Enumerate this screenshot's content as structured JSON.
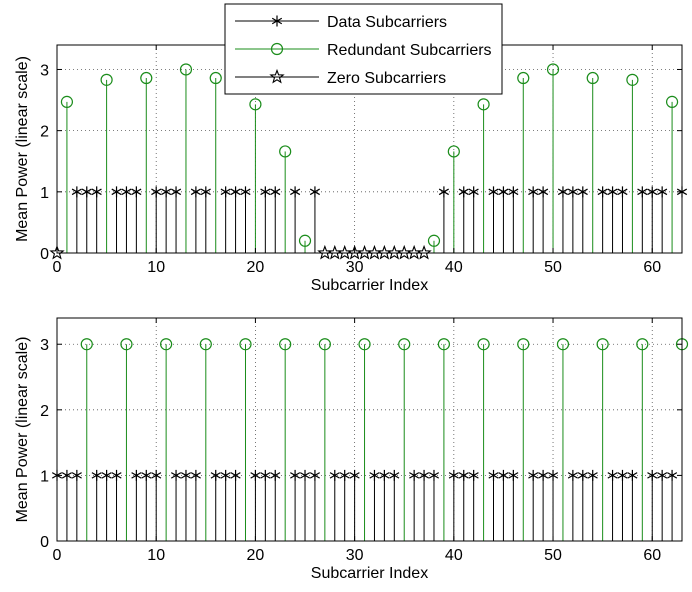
{
  "colors": {
    "data": "#000000",
    "redundant": "#1a8c1a",
    "zero": "#000000",
    "grid": "#555555"
  },
  "legend": {
    "location": "top-center",
    "entries": [
      {
        "label": "Data Subcarriers",
        "marker": "asterisk",
        "color": "#000000"
      },
      {
        "label": "Redundant Subcarriers",
        "marker": "circle",
        "color": "#1a8c1a"
      },
      {
        "label": "Zero Subcarriers",
        "marker": "pentagram",
        "color": "#000000"
      }
    ]
  },
  "chart_data": [
    {
      "type": "stem",
      "xlabel": "Subcarrier Index",
      "ylabel": "Mean Power (linear scale)",
      "xlim": [
        0,
        63
      ],
      "ylim": [
        0,
        3.4
      ],
      "xticks": [
        0,
        10,
        20,
        30,
        40,
        50,
        60
      ],
      "yticks": [
        0,
        1,
        2,
        3
      ],
      "grid": true,
      "has_legend": true,
      "series": [
        {
          "name": "Data Subcarriers",
          "marker": "asterisk",
          "x": [
            2,
            3,
            4,
            6,
            7,
            8,
            10,
            11,
            12,
            14,
            15,
            17,
            18,
            19,
            21,
            22,
            24,
            26,
            39,
            41,
            42,
            44,
            45,
            46,
            48,
            49,
            51,
            52,
            53,
            55,
            56,
            57,
            59,
            60,
            61,
            63
          ],
          "y": [
            1,
            1,
            1,
            1,
            1,
            1,
            1,
            1,
            1,
            1,
            1,
            1,
            1,
            1,
            1,
            1,
            1,
            1,
            1,
            1,
            1,
            1,
            1,
            1,
            1,
            1,
            1,
            1,
            1,
            1,
            1,
            1,
            1,
            1,
            1,
            1
          ]
        },
        {
          "name": "Redundant Subcarriers",
          "marker": "circle",
          "x": [
            1,
            5,
            9,
            13,
            16,
            20,
            23,
            25,
            38,
            40,
            43,
            47,
            50,
            54,
            58,
            62
          ],
          "y": [
            2.47,
            2.83,
            2.86,
            3.0,
            2.86,
            2.43,
            1.66,
            0.2,
            0.2,
            1.66,
            2.43,
            2.86,
            3.0,
            2.86,
            2.83,
            2.47
          ]
        },
        {
          "name": "Zero Subcarriers",
          "marker": "pentagram",
          "x": [
            0,
            27,
            28,
            29,
            30,
            31,
            32,
            33,
            34,
            35,
            36,
            37
          ],
          "y": [
            0,
            0,
            0,
            0,
            0,
            0,
            0,
            0,
            0,
            0,
            0,
            0
          ]
        }
      ]
    },
    {
      "type": "stem",
      "xlabel": "Subcarrier Index",
      "ylabel": "Mean Power (linear scale)",
      "xlim": [
        0,
        63
      ],
      "ylim": [
        0,
        3.4
      ],
      "xticks": [
        0,
        10,
        20,
        30,
        40,
        50,
        60
      ],
      "yticks": [
        0,
        1,
        2,
        3
      ],
      "grid": true,
      "has_legend": false,
      "series": [
        {
          "name": "Data Subcarriers",
          "marker": "asterisk",
          "x": [
            0,
            1,
            2,
            4,
            5,
            6,
            8,
            9,
            10,
            12,
            13,
            14,
            16,
            17,
            18,
            20,
            21,
            22,
            24,
            25,
            26,
            28,
            29,
            30,
            32,
            33,
            34,
            36,
            37,
            38,
            40,
            41,
            42,
            44,
            45,
            46,
            48,
            49,
            50,
            52,
            53,
            54,
            56,
            57,
            58,
            60,
            61,
            62
          ],
          "y": [
            1,
            1,
            1,
            1,
            1,
            1,
            1,
            1,
            1,
            1,
            1,
            1,
            1,
            1,
            1,
            1,
            1,
            1,
            1,
            1,
            1,
            1,
            1,
            1,
            1,
            1,
            1,
            1,
            1,
            1,
            1,
            1,
            1,
            1,
            1,
            1,
            1,
            1,
            1,
            1,
            1,
            1,
            1,
            1,
            1,
            1,
            1,
            1
          ]
        },
        {
          "name": "Redundant Subcarriers",
          "marker": "circle",
          "x": [
            3,
            7,
            11,
            15,
            19,
            23,
            27,
            31,
            35,
            39,
            43,
            47,
            51,
            55,
            59,
            63
          ],
          "y": [
            3,
            3,
            3,
            3,
            3,
            3,
            3,
            3,
            3,
            3,
            3,
            3,
            3,
            3,
            3,
            3
          ]
        }
      ]
    }
  ]
}
